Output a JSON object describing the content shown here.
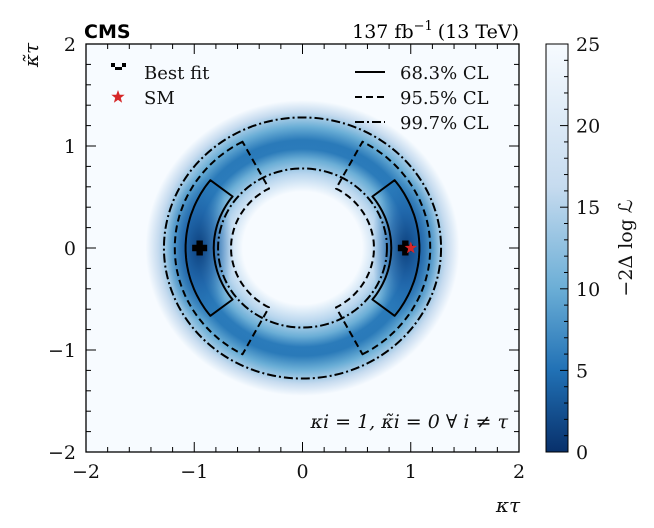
{
  "chart_data": {
    "type": "heatmap",
    "experiment": "CMS",
    "luminosity": "137 fb",
    "lumi_exponent": "−1",
    "energy": "(13 TeV)",
    "xlabel": "κτ",
    "ylabel": "κ̃τ",
    "xlim": [
      -2,
      2
    ],
    "ylim": [
      -2,
      2
    ],
    "x_ticks": [
      -2,
      -1,
      0,
      1,
      2
    ],
    "y_ticks": [
      -2,
      -1,
      0,
      1,
      2
    ],
    "x_tick_labels": [
      "−2",
      "−1",
      "0",
      "1",
      "2"
    ],
    "y_tick_labels": [
      "−2",
      "−1",
      "0",
      "1",
      "2"
    ],
    "colorbar": {
      "label": "−2Δ log ℒ",
      "range": [
        0,
        25
      ],
      "ticks": [
        0,
        5,
        10,
        15,
        20,
        25
      ],
      "tick_labels": [
        "0",
        "5",
        "10",
        "15",
        "20",
        "25"
      ],
      "colormap": [
        "#08306b",
        "#2171b5",
        "#6baed6",
        "#c6dbef",
        "#f7fbff"
      ]
    },
    "best_fit_points": [
      {
        "x": -0.95,
        "y": 0.0
      },
      {
        "x": 0.95,
        "y": 0.0
      }
    ],
    "sm_point": {
      "x": 1.0,
      "y": 0.0
    },
    "contours": [
      {
        "label": "68.3% CL",
        "style": "solid",
        "type": "arc-pair",
        "r_in": 0.82,
        "r_out": 1.08,
        "half_angle_deg": 38
      },
      {
        "label": "95.5% CL",
        "style": "dashed",
        "type": "arc-pair",
        "r_in": 0.66,
        "r_out": 1.18,
        "half_angle_deg": 62
      },
      {
        "label": "99.7% CL",
        "style": "dashdot",
        "type": "ring",
        "r_in": 0.78,
        "r_out": 1.28
      }
    ],
    "legend": {
      "placement": "top",
      "left_entries": [
        {
          "marker": "plus",
          "color": "#000000",
          "label": "Best fit"
        },
        {
          "marker": "star",
          "color": "#d62728",
          "label": "SM"
        }
      ],
      "right_entries": [
        {
          "style": "solid",
          "label": "68.3% CL"
        },
        {
          "style": "dashed",
          "label": "95.5% CL"
        },
        {
          "style": "dashdot",
          "label": "99.7% CL"
        }
      ]
    },
    "annotation": "κi = 1, κ̃i = 0 ∀ i ≠ τ",
    "grid": false
  }
}
